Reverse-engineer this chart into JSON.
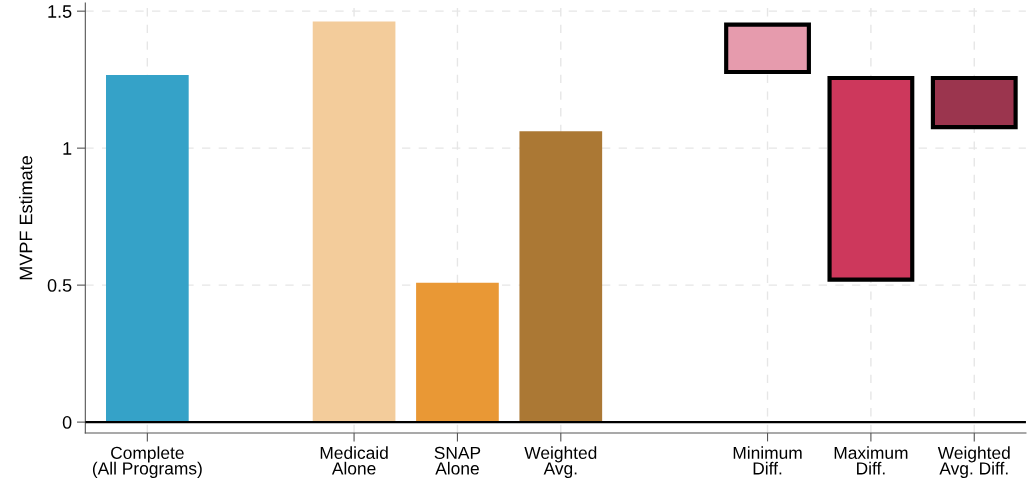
{
  "chart_data": {
    "type": "bar",
    "ylabel": "MVPF Estimate",
    "categories": [
      "Complete\n(All Programs)",
      null,
      "Medicaid\nAlone",
      "SNAP\nAlone",
      "Weighted\nAvg.",
      null,
      "Minimum\nDiff.",
      "Maximum\nDiff.",
      "Weighted\nAvg. Diff."
    ],
    "values": [
      1.267,
      null,
      1.462,
      0.509,
      1.062,
      null,
      0.173,
      0.736,
      0.179
    ],
    "base": [
      0,
      null,
      0,
      0,
      0,
      null,
      1.278,
      0.52,
      1.077
    ],
    "colors": [
      "#35a2c8",
      null,
      "#f3cc9b",
      "#e99835",
      "#ab7834",
      null,
      "#e69bad",
      "#cd385c",
      "#9b354e"
    ],
    "ylim": [
      -0.04,
      1.53
    ],
    "yticks": [
      0,
      0.5,
      1,
      1.5
    ],
    "ref_lines": [
      {
        "axis": "y",
        "value": 0,
        "color": "#000000"
      }
    ],
    "grid": true
  }
}
